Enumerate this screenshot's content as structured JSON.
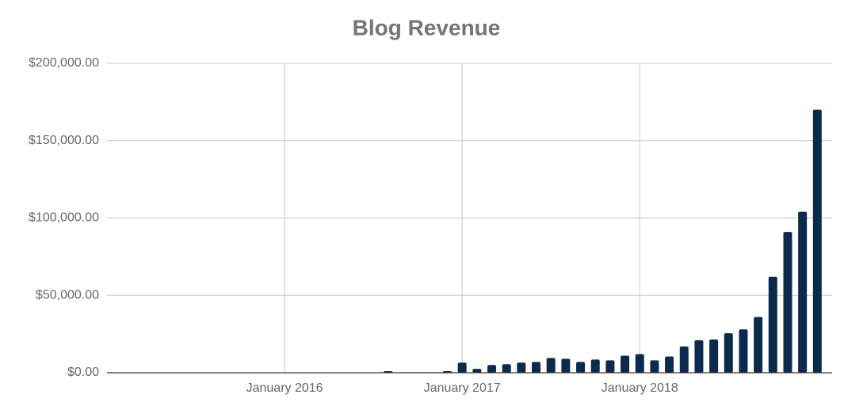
{
  "chart_data": {
    "type": "bar",
    "title": "Blog Revenue",
    "x": [
      "August 2016",
      "September 2016",
      "October 2016",
      "November 2016",
      "December 2016",
      "January 2017",
      "February 2017",
      "March 2017",
      "April 2017",
      "May 2017",
      "June 2017",
      "July 2017",
      "August 2017",
      "September 2017",
      "October 2017",
      "November 2017",
      "December 2017",
      "January 2018",
      "February 2018",
      "March 2018",
      "April 2018",
      "May 2018",
      "June 2018",
      "July 2018",
      "August 2018",
      "September 2018",
      "October 2018",
      "November 2018",
      "December 2018",
      "January 2019"
    ],
    "values": [
      1000,
      300,
      300,
      300,
      1000,
      6500,
      2500,
      5000,
      5500,
      6500,
      7000,
      9500,
      9000,
      7000,
      8500,
      8000,
      11000,
      12000,
      8000,
      10500,
      17000,
      21000,
      21500,
      25500,
      28000,
      36000,
      62000,
      91000,
      104000,
      170000
    ],
    "color": "#0c2a4b",
    "xlim": [
      "January 2015",
      "February 2019"
    ],
    "xticks": [
      "January 2016",
      "January 2017",
      "January 2018"
    ],
    "ylim": [
      0,
      200000
    ],
    "yticks": [
      {
        "value": 0,
        "label": "$0.00"
      },
      {
        "value": 50000,
        "label": "$50,000.00"
      },
      {
        "value": 100000,
        "label": "$100,000.00"
      },
      {
        "value": 150000,
        "label": "$150,000.00"
      },
      {
        "value": 200000,
        "label": "$200,000.00"
      }
    ],
    "grid": true
  }
}
